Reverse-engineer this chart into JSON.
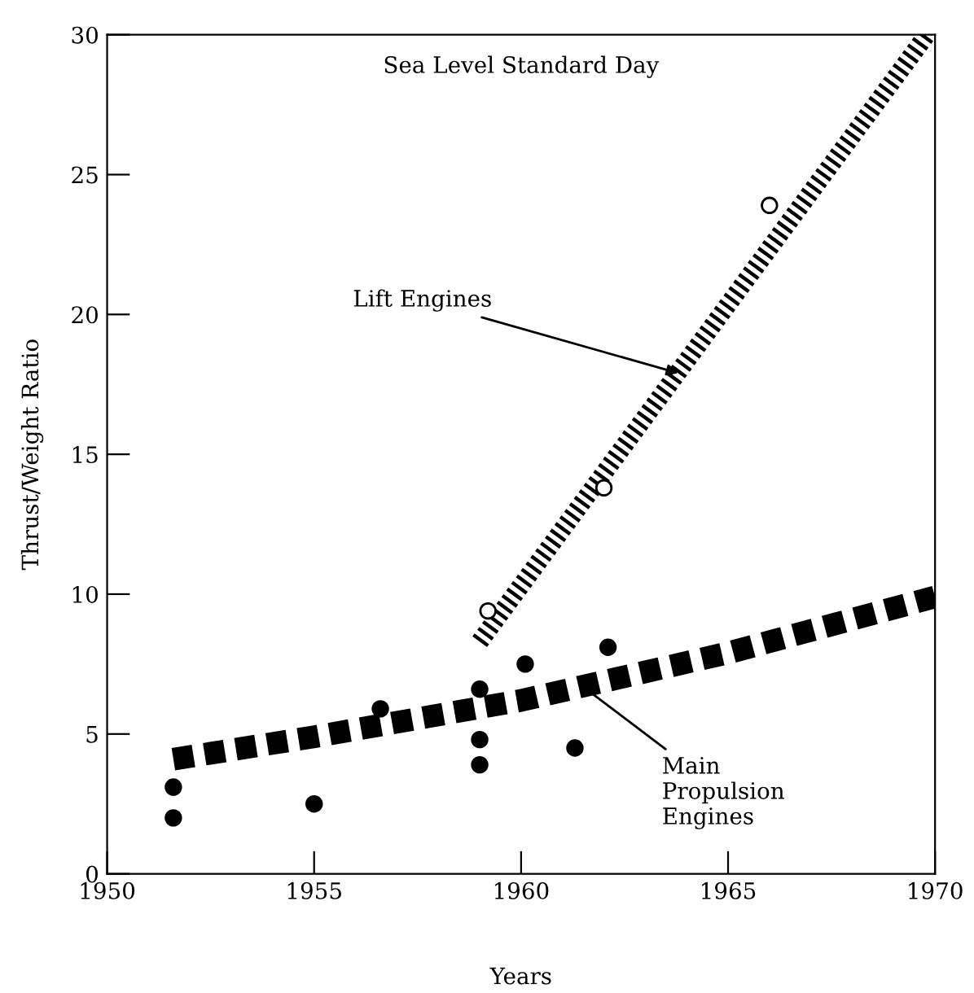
{
  "chart_data": {
    "type": "line",
    "xlabel": "Years",
    "ylabel": "Thrust/Weight Ratio",
    "xlim": [
      1950,
      1970
    ],
    "ylim": [
      0,
      30
    ],
    "xticks": [
      1950,
      1955,
      1960,
      1965,
      1970
    ],
    "yticks": [
      0,
      5,
      10,
      15,
      20,
      25,
      30
    ],
    "grid": false,
    "legend": false,
    "series": [
      {
        "color": "#000000",
        "line_style": "dashed",
        "marker": "none",
        "x": [
          1951.6,
          1955,
          1960,
          1965,
          1970
        ],
        "values": [
          4.1,
          4.9,
          6.2,
          7.9,
          9.9
        ]
      },
      {
        "color": "#000000",
        "line_style": "dotted",
        "marker": "none",
        "x": [
          1959.0,
          1969.8
        ],
        "values": [
          8.3,
          30.0
        ]
      },
      {
        "type": "scatter",
        "color": "#000000",
        "marker": "circle",
        "x": [
          1951.6,
          1951.6,
          1955.0,
          1956.6,
          1959.0,
          1959.0,
          1959.0,
          1960.1,
          1961.3,
          1962.1
        ],
        "values": [
          3.1,
          2.0,
          2.5,
          5.9,
          6.6,
          4.8,
          3.9,
          7.5,
          4.5,
          8.1
        ]
      },
      {
        "type": "scatter",
        "color": "#ffffff",
        "marker": "circle",
        "x": [
          1959.2,
          1962.0,
          1966.0
        ],
        "values": [
          9.4,
          13.8,
          23.9
        ]
      }
    ],
    "annotations": [
      "Sea Level Standard Day",
      {
        "text": "Lift Engines",
        "x": 1963.8,
        "y": 17.9
      },
      {
        "text": "Main\nPropulsion\nEngines",
        "x": 1961.4,
        "y": 6.8
      }
    ]
  }
}
